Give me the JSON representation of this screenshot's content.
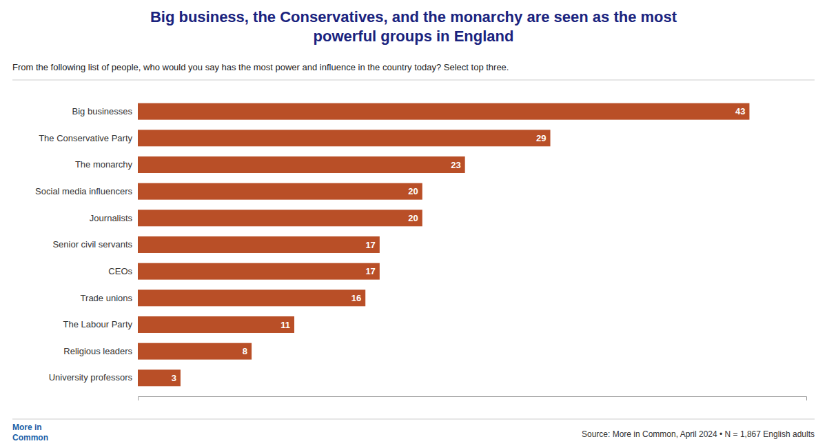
{
  "chart_data": {
    "type": "bar",
    "orientation": "horizontal",
    "title": "Big business, the Conservatives, and the monarchy are seen as the most\npowerful groups in England",
    "subtitle": "From the following list of people, who would you say has the most power and influence in the country today? Select top three.",
    "annotations": [
      "Source: More in Common, April 2024 • N = 1,867 English adults",
      "More in",
      "Common"
    ],
    "categories": [
      "Big businesses",
      "The Conservative Party",
      "The monarchy",
      "Social media influencers",
      "Journalists",
      "Senior civil servants",
      "CEOs",
      "Trade unions",
      "The Labour Party",
      "Religious leaders",
      "University professors"
    ],
    "values": [
      43,
      29,
      23,
      20,
      20,
      17,
      17,
      16,
      11,
      8,
      3
    ],
    "color": "#b94f27",
    "xlim": [
      0,
      47
    ],
    "xticks": [],
    "data_labels": true,
    "tick_labels": "y"
  }
}
